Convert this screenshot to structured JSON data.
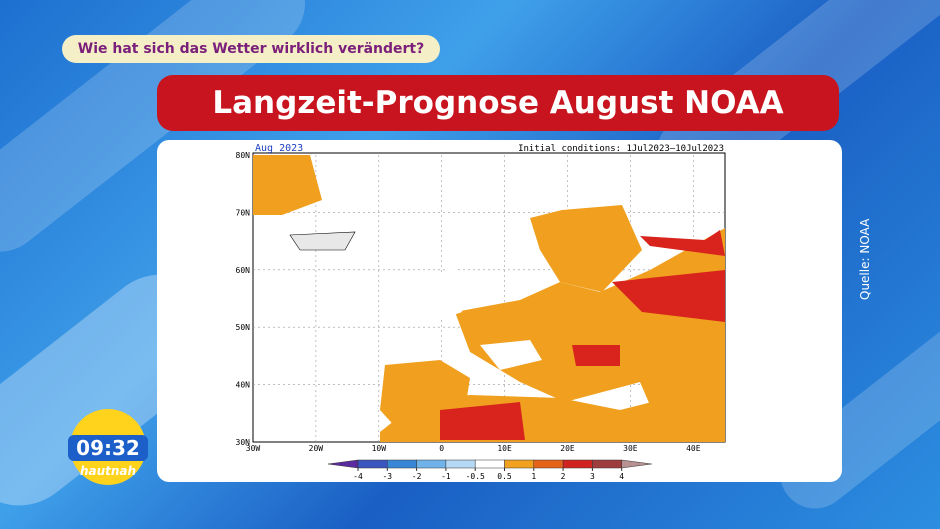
{
  "topic": "Wie hat sich das Wetter wirklich verändert?",
  "title": "Langzeit-Prognose August NOAA",
  "source": "Quelle: NOAA",
  "clock": {
    "time": "09:32",
    "show": "hautnah"
  },
  "map": {
    "label": "Aug 2023",
    "conditions": "Initial conditions: 1Jul2023–10Jul2023",
    "lat_labels": [
      "80N",
      "70N",
      "60N",
      "50N",
      "40N",
      "30N"
    ],
    "lon_labels": [
      "30W",
      "20W",
      "10W",
      "0",
      "10E",
      "20E",
      "30E",
      "40E"
    ],
    "colorbar": {
      "ticks": [
        -4,
        -3,
        -2,
        -1,
        -0.5,
        0.5,
        1,
        2,
        3,
        4
      ],
      "colors": [
        "#5a2a9e",
        "#3b55c0",
        "#3a86d6",
        "#6fb3ea",
        "#b5d9f4",
        "#ffffff",
        "#f2a11e",
        "#e6641a",
        "#d1231f",
        "#9e3d3d",
        "#b89292"
      ]
    }
  }
}
